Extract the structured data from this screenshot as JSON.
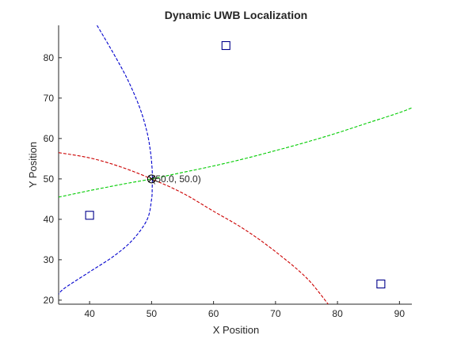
{
  "chart_data": {
    "type": "scatter",
    "title": "Dynamic UWB Localization",
    "xlabel": "X Position",
    "ylabel": "Y Position",
    "xlim": [
      35,
      92
    ],
    "ylim": [
      19,
      88
    ],
    "xticks": [
      "40",
      "50",
      "60",
      "70",
      "80",
      "90"
    ],
    "yticks": [
      "20",
      "30",
      "40",
      "50",
      "60",
      "70",
      "80"
    ],
    "grid": false,
    "anchors": [
      {
        "x": 62,
        "y": 83
      },
      {
        "x": 40,
        "y": 41
      },
      {
        "x": 87,
        "y": 24
      }
    ],
    "anchor_color": "#00008b",
    "estimate": {
      "x": 50.0,
      "y": 50.0,
      "label": "(50.0, 50.0)"
    },
    "curves": [
      {
        "color": "#0000cd",
        "points": [
          [
            41.2,
            88
          ],
          [
            43.5,
            82
          ],
          [
            46,
            75
          ],
          [
            48,
            68
          ],
          [
            49.2,
            62
          ],
          [
            49.8,
            57
          ],
          [
            50.1,
            52
          ],
          [
            50.1,
            48
          ],
          [
            50,
            45
          ],
          [
            49.3,
            40
          ],
          [
            47,
            35
          ],
          [
            44,
            31
          ],
          [
            40,
            27
          ],
          [
            36,
            23
          ],
          [
            35,
            21.5
          ]
        ]
      },
      {
        "color": "#cc0000",
        "points": [
          [
            35,
            56.5
          ],
          [
            40,
            55.2
          ],
          [
            45,
            53
          ],
          [
            50,
            50
          ],
          [
            55,
            46.5
          ],
          [
            60,
            42
          ],
          [
            65,
            37.5
          ],
          [
            70,
            32
          ],
          [
            75,
            25.5
          ],
          [
            78.5,
            19
          ]
        ]
      },
      {
        "color": "#00cc00",
        "points": [
          [
            35,
            45.5
          ],
          [
            40,
            47.1
          ],
          [
            45,
            48.6
          ],
          [
            50,
            50
          ],
          [
            55,
            51.6
          ],
          [
            60,
            53.2
          ],
          [
            65,
            55
          ],
          [
            70,
            57
          ],
          [
            75,
            59.1
          ],
          [
            80,
            61.4
          ],
          [
            85,
            63.9
          ],
          [
            90,
            66.4
          ],
          [
            92,
            67.6
          ]
        ]
      }
    ]
  }
}
